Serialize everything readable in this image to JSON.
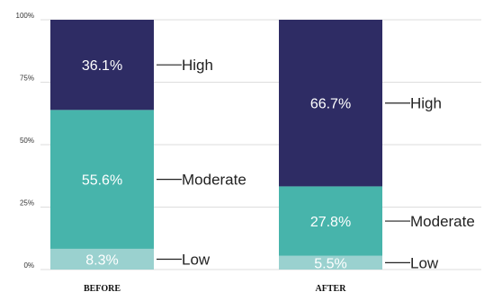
{
  "chart_data": {
    "type": "bar",
    "stacked": true,
    "categories": [
      "BEFORE",
      "AFTER"
    ],
    "series": [
      {
        "name": "Low",
        "values": [
          8.3,
          5.5
        ],
        "labels": [
          "8.3%",
          "5.5%"
        ],
        "color": "#9ad1cf"
      },
      {
        "name": "Moderate",
        "values": [
          55.6,
          27.8
        ],
        "labels": [
          "55.6%",
          "27.8%"
        ],
        "color": "#47b4ab"
      },
      {
        "name": "High",
        "values": [
          36.1,
          66.7
        ],
        "labels": [
          "36.1%",
          "66.7%"
        ],
        "color": "#2e2c64"
      }
    ],
    "yticks": [
      {
        "value": 0,
        "label": "0%"
      },
      {
        "value": 25,
        "label": "25%"
      },
      {
        "value": 50,
        "label": "50%"
      },
      {
        "value": 75,
        "label": "75%"
      },
      {
        "value": 100,
        "label": "100%"
      }
    ],
    "ylim": [
      0,
      100
    ],
    "grid": true,
    "legend": "side labels",
    "title": "",
    "xlabel": "",
    "ylabel": ""
  }
}
